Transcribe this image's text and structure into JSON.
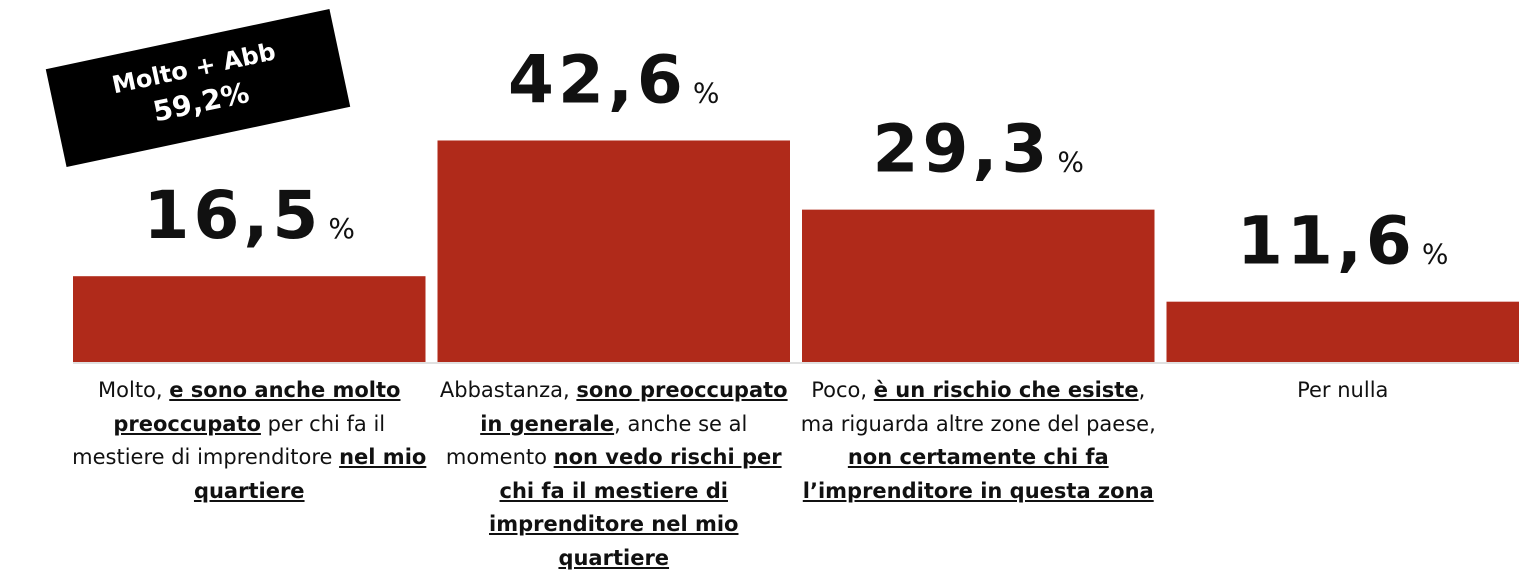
{
  "chart_data": {
    "type": "bar",
    "categories": [
      [
        {
          "text": "Molto, "
        },
        {
          "text": "e sono anche molto preoccupato",
          "bold": true
        },
        {
          "text": " per chi fa il mestiere di imprenditore "
        },
        {
          "text": "nel mio quartiere",
          "bold": true
        }
      ],
      [
        {
          "text": "Abbastanza, "
        },
        {
          "text": "sono preoccupato in generale",
          "bold": true
        },
        {
          "text": ", anche se al momento "
        },
        {
          "text": "non vedo rischi per chi fa il mestiere di imprenditore nel mio quartiere",
          "bold": true
        }
      ],
      [
        {
          "text": "Poco, "
        },
        {
          "text": "è un rischio che esiste",
          "bold": true
        },
        {
          "text": ", ma riguarda altre zone del paese, "
        },
        {
          "text": "non certamente chi fa l’imprenditore in questa zona",
          "bold": true
        }
      ],
      [
        {
          "text": "Per nulla"
        }
      ]
    ],
    "values": [
      16.5,
      42.6,
      29.3,
      11.6
    ],
    "value_labels": [
      "16,5",
      "42,6",
      "29,3",
      "11,6"
    ],
    "value_suffix": "%",
    "color": "#b02a1a",
    "ylim": [
      0,
      50
    ],
    "annotation": [
      "Molto + Abb",
      "59,2%"
    ]
  }
}
